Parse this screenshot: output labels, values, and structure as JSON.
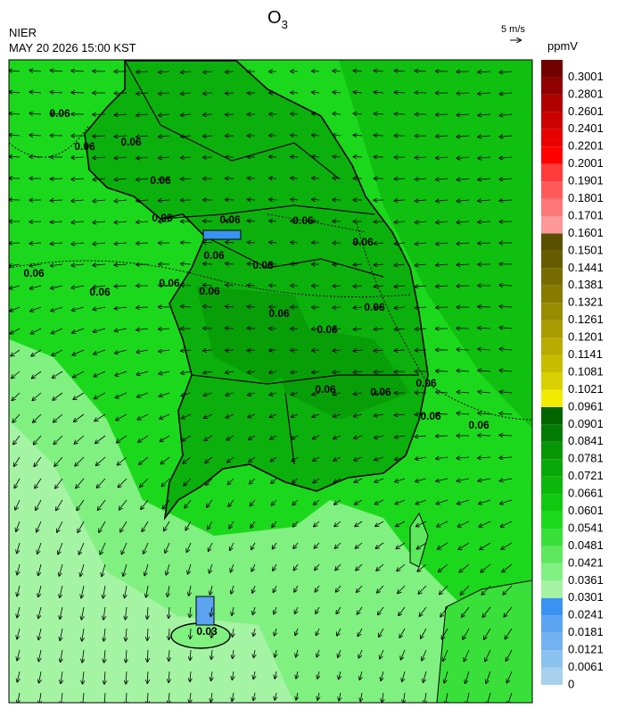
{
  "header": {
    "agency": "NIER",
    "datetime": "MAY 20 2026 15:00 KST",
    "title": {
      "main": "O",
      "subscript": "3"
    },
    "wind_scale": "5 m/s"
  },
  "legend": {
    "unit": "ppmV",
    "labels": [
      "0",
      "0.0061",
      "0.0121",
      "0.0181",
      "0.0241",
      "0.0301",
      "0.0361",
      "0.0421",
      "0.0481",
      "0.0541",
      "0.0601",
      "0.0661",
      "0.0721",
      "0.0781",
      "0.0841",
      "0.0901",
      "0.0961",
      "0.1021",
      "0.1081",
      "0.1141",
      "0.1201",
      "0.1261",
      "0.1321",
      "0.1381",
      "0.1441",
      "0.1501",
      "0.1601",
      "0.1701",
      "0.1801",
      "0.1901",
      "0.2001",
      "0.2201",
      "0.2401",
      "0.2601",
      "0.2801",
      "0.3001"
    ],
    "colors": [
      "#a6d0ec",
      "#8cc2ee",
      "#72b2f0",
      "#5aa4f2",
      "#3a92f4",
      "#a4f4a4",
      "#80f080",
      "#5ee85e",
      "#3ae03a",
      "#1cd81c",
      "#10c810",
      "#0cb80c",
      "#08a808",
      "#069606",
      "#047c04",
      "#006400",
      "#f2ea00",
      "#d8d000",
      "#c8bc00",
      "#b8ac00",
      "#a89c00",
      "#988c00",
      "#887c00",
      "#786c00",
      "#685c00",
      "#5a5000",
      "#ff9898",
      "#ff7878",
      "#ff5a5a",
      "#ff3a3a",
      "#ff0000",
      "#e80000",
      "#cc0000",
      "#b00000",
      "#900000",
      "#700000"
    ]
  },
  "contour_labels": [
    "0.06",
    "0.06",
    "0.06",
    "0.06",
    "0.06",
    "0.06",
    "0.06",
    "0.06",
    "0.06",
    "0.06",
    "0.06",
    "0.06",
    "0.06",
    "0.06",
    "0.06",
    "0.06",
    "0.06",
    "0.06",
    "0.06",
    "0.06",
    "0.06",
    "0.06",
    "0.03"
  ]
}
